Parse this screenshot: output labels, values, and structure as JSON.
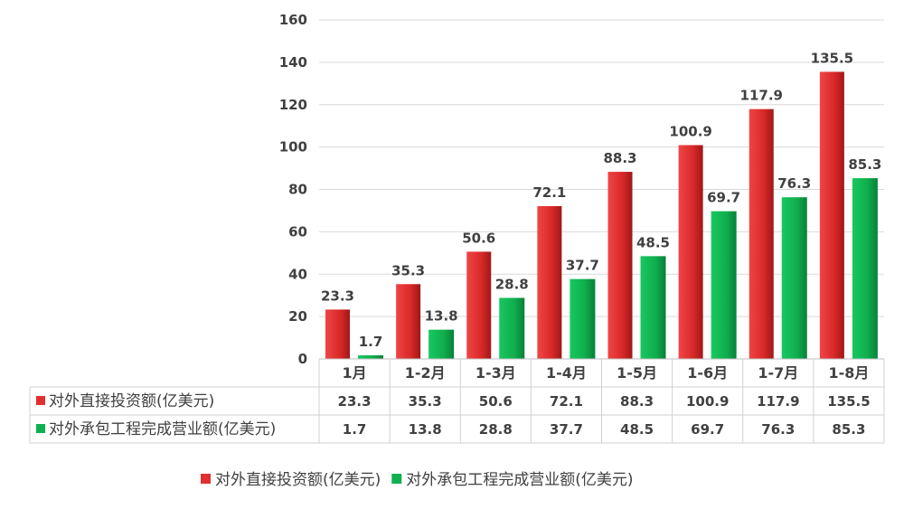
{
  "chart_data": {
    "type": "bar",
    "categories": [
      "1月",
      "1-2月",
      "1-3月",
      "1-4月",
      "1-5月",
      "1-6月",
      "1-7月",
      "1-8月"
    ],
    "series": [
      {
        "name": "对外直接投资额(亿美元)",
        "color": "#e03030",
        "values": [
          23.3,
          35.3,
          50.6,
          72.1,
          88.3,
          100.9,
          117.9,
          135.5
        ]
      },
      {
        "name": "对外承包工程完成营业额(亿美元)",
        "color": "#10b050",
        "values": [
          1.7,
          13.8,
          28.8,
          37.7,
          48.5,
          69.7,
          76.3,
          85.3
        ]
      }
    ],
    "ylim": [
      0,
      160
    ],
    "yticks": [
      0,
      20,
      40,
      60,
      80,
      100,
      120,
      140,
      160
    ],
    "grid": true,
    "data_table": true,
    "legend": "bottom"
  }
}
